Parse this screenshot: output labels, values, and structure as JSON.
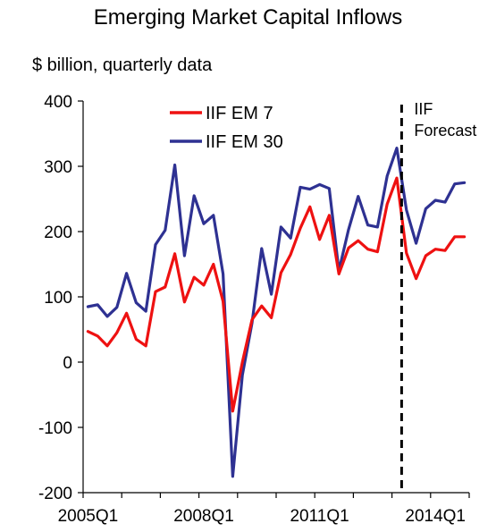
{
  "chart_data": {
    "type": "line",
    "title": "Emerging Market Capital Inflows",
    "subtitle": "$ billion, quarterly data",
    "ylim": [
      -200,
      400
    ],
    "yticks": [
      400,
      300,
      200,
      100,
      0,
      -100,
      -200
    ],
    "ytick_labels": [
      "400",
      "300",
      "200",
      "100",
      "0",
      "-100",
      "-200"
    ],
    "xtick_labels": [
      "2005Q1",
      "2008Q1",
      "2011Q1",
      "2014Q1"
    ],
    "xtick_positions": [
      "2005Q1",
      "2008Q1",
      "2011Q1",
      "2014Q1"
    ],
    "x": [
      "2005Q1",
      "2005Q2",
      "2005Q3",
      "2005Q4",
      "2006Q1",
      "2006Q2",
      "2006Q3",
      "2006Q4",
      "2007Q1",
      "2007Q2",
      "2007Q3",
      "2007Q4",
      "2008Q1",
      "2008Q2",
      "2008Q3",
      "2008Q4",
      "2009Q1",
      "2009Q2",
      "2009Q3",
      "2009Q4",
      "2010Q1",
      "2010Q2",
      "2010Q3",
      "2010Q4",
      "2011Q1",
      "2011Q2",
      "2011Q3",
      "2011Q4",
      "2012Q1",
      "2012Q2",
      "2012Q3",
      "2012Q4",
      "2013Q1",
      "2013Q2",
      "2013Q3",
      "2013Q4",
      "2014Q1",
      "2014Q2",
      "2014Q3",
      "2014Q4"
    ],
    "series": [
      {
        "name": "IIF EM 7",
        "color": "#ee1111",
        "values": [
          47,
          40,
          25,
          45,
          75,
          35,
          25,
          108,
          115,
          166,
          92,
          130,
          118,
          150,
          93,
          -75,
          0,
          65,
          86,
          68,
          137,
          165,
          205,
          238,
          188,
          225,
          135,
          175,
          186,
          173,
          169,
          242,
          282,
          167,
          128,
          163,
          173,
          171,
          192,
          192
        ]
      },
      {
        "name": "IIF EM 30",
        "color": "#2e3192",
        "values": [
          85,
          88,
          70,
          84,
          136,
          91,
          78,
          180,
          202,
          302,
          163,
          255,
          212,
          225,
          135,
          -175,
          -20,
          60,
          174,
          104,
          207,
          190,
          268,
          265,
          272,
          266,
          140,
          203,
          254,
          210,
          207,
          285,
          328,
          233,
          182,
          235,
          248,
          245,
          273,
          275
        ]
      }
    ],
    "forecast_start": "2013Q2",
    "forecast_label_line1": "IIF",
    "forecast_label_line2": "Forecast",
    "legend_position": "top-left",
    "grid": false
  }
}
